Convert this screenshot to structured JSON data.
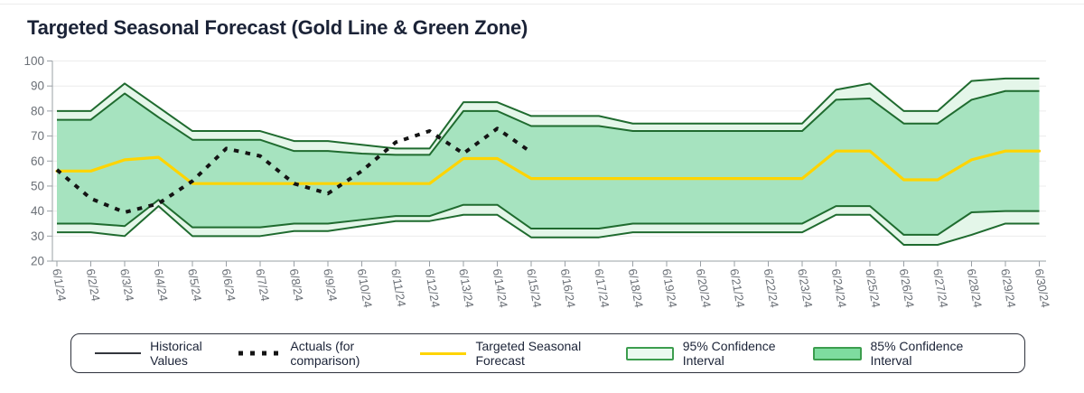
{
  "page": {
    "title": "Targeted Seasonal Forecast (Gold Line & Green Zone)"
  },
  "colors": {
    "title_text": "#1b2337",
    "axis_text": "#6b7077",
    "axis_line": "#9aa0a6",
    "gridline": "#ececec",
    "band_border_green": "#1f6b2f",
    "ci95_fill": "#e4f6e9",
    "ci85_fill": "#a6e3bf",
    "forecast_gold": "#ffd400",
    "actuals_black": "#141414",
    "historical_black": "#33363d",
    "legend_border": "#2e323c",
    "legend_swatch_border": "#3c9d4e",
    "legend_ci95_fill": "#eafaf0",
    "legend_ci85_fill": "#7edc9f"
  },
  "chart_data": {
    "type": "line",
    "title": "Targeted Seasonal Forecast (Gold Line & Green Zone)",
    "xlabel": "",
    "ylabel": "",
    "ylim": [
      20,
      100
    ],
    "yticks": [
      100,
      90,
      80,
      70,
      60,
      50,
      40,
      30,
      20
    ],
    "grid": "horizontal",
    "legend_position": "bottom",
    "x": [
      "6/1/24",
      "6/2/24",
      "6/3/24",
      "6/4/24",
      "6/5/24",
      "6/6/24",
      "6/7/24",
      "6/8/24",
      "6/9/24",
      "6/10/24",
      "6/11/24",
      "6/12/24",
      "6/13/24",
      "6/14/24",
      "6/15/24",
      "6/16/24",
      "6/17/24",
      "6/18/24",
      "6/19/24",
      "6/20/24",
      "6/21/24",
      "6/22/24",
      "6/23/24",
      "6/24/24",
      "6/25/24",
      "6/26/24",
      "6/27/24",
      "6/28/24",
      "6/29/24",
      "6/30/24"
    ],
    "series": [
      {
        "name": "Historical Values",
        "style": "solid-black",
        "values": []
      },
      {
        "name": "Actuals (for comparison)",
        "style": "dashed-black",
        "values": [
          56.5,
          45,
          39.5,
          43,
          52,
          65,
          62,
          51,
          47,
          56,
          67.5,
          72,
          63,
          73,
          63.5,
          null,
          null,
          null,
          null,
          null,
          null,
          null,
          null,
          null,
          null,
          null,
          null,
          null,
          null,
          null
        ]
      },
      {
        "name": "Targeted Seasonal Forecast",
        "style": "gold-line",
        "values": [
          56,
          56,
          60.5,
          61.5,
          51,
          51,
          51,
          51,
          51,
          51,
          51,
          51,
          61,
          61,
          53,
          53,
          53,
          53,
          53,
          53,
          53,
          53,
          53,
          64,
          64,
          52.5,
          52.5,
          60.5,
          64,
          64
        ]
      },
      {
        "name": "95% Confidence Interval",
        "style": "band-light",
        "upper": [
          80,
          80,
          91,
          81.5,
          72,
          72,
          72,
          68,
          68,
          66.5,
          65,
          65,
          83.5,
          83.5,
          78,
          78,
          78,
          75,
          75,
          75,
          75,
          75,
          75,
          88.5,
          91,
          80,
          80,
          92,
          93,
          93
        ],
        "lower": [
          31.5,
          31.5,
          30,
          42,
          30,
          30,
          30,
          32,
          32,
          34,
          36,
          36,
          38.5,
          38.5,
          29.5,
          29.5,
          29.5,
          31.5,
          31.5,
          31.5,
          31.5,
          31.5,
          31.5,
          38.5,
          38.5,
          26.5,
          26.5,
          30.5,
          35,
          35
        ]
      },
      {
        "name": "85% Confidence Interval",
        "style": "band-medium",
        "upper": [
          76.5,
          76.5,
          87,
          77.5,
          68.5,
          68.5,
          68.5,
          64,
          64,
          63,
          62.5,
          62.5,
          80,
          80,
          74,
          74,
          74,
          72,
          72,
          72,
          72,
          72,
          72,
          84.5,
          85,
          75,
          75,
          84.5,
          88,
          88
        ],
        "lower": [
          35,
          35,
          34,
          44.5,
          33.5,
          33.5,
          33.5,
          35,
          35,
          36.5,
          38,
          38,
          42.5,
          42.5,
          33,
          33,
          33,
          35,
          35,
          35,
          35,
          35,
          35,
          42,
          42,
          30.5,
          30.5,
          39.5,
          40,
          40
        ]
      }
    ]
  },
  "legend": {
    "items": [
      {
        "label": "Historical Values",
        "style": "solid-black"
      },
      {
        "label": "Actuals (for comparison)",
        "style": "dashed-black"
      },
      {
        "label": "Targeted Seasonal Forecast",
        "style": "gold-line"
      },
      {
        "label": "95% Confidence Interval",
        "style": "band-light"
      },
      {
        "label": "85% Confidence Interval",
        "style": "band-medium"
      }
    ]
  }
}
